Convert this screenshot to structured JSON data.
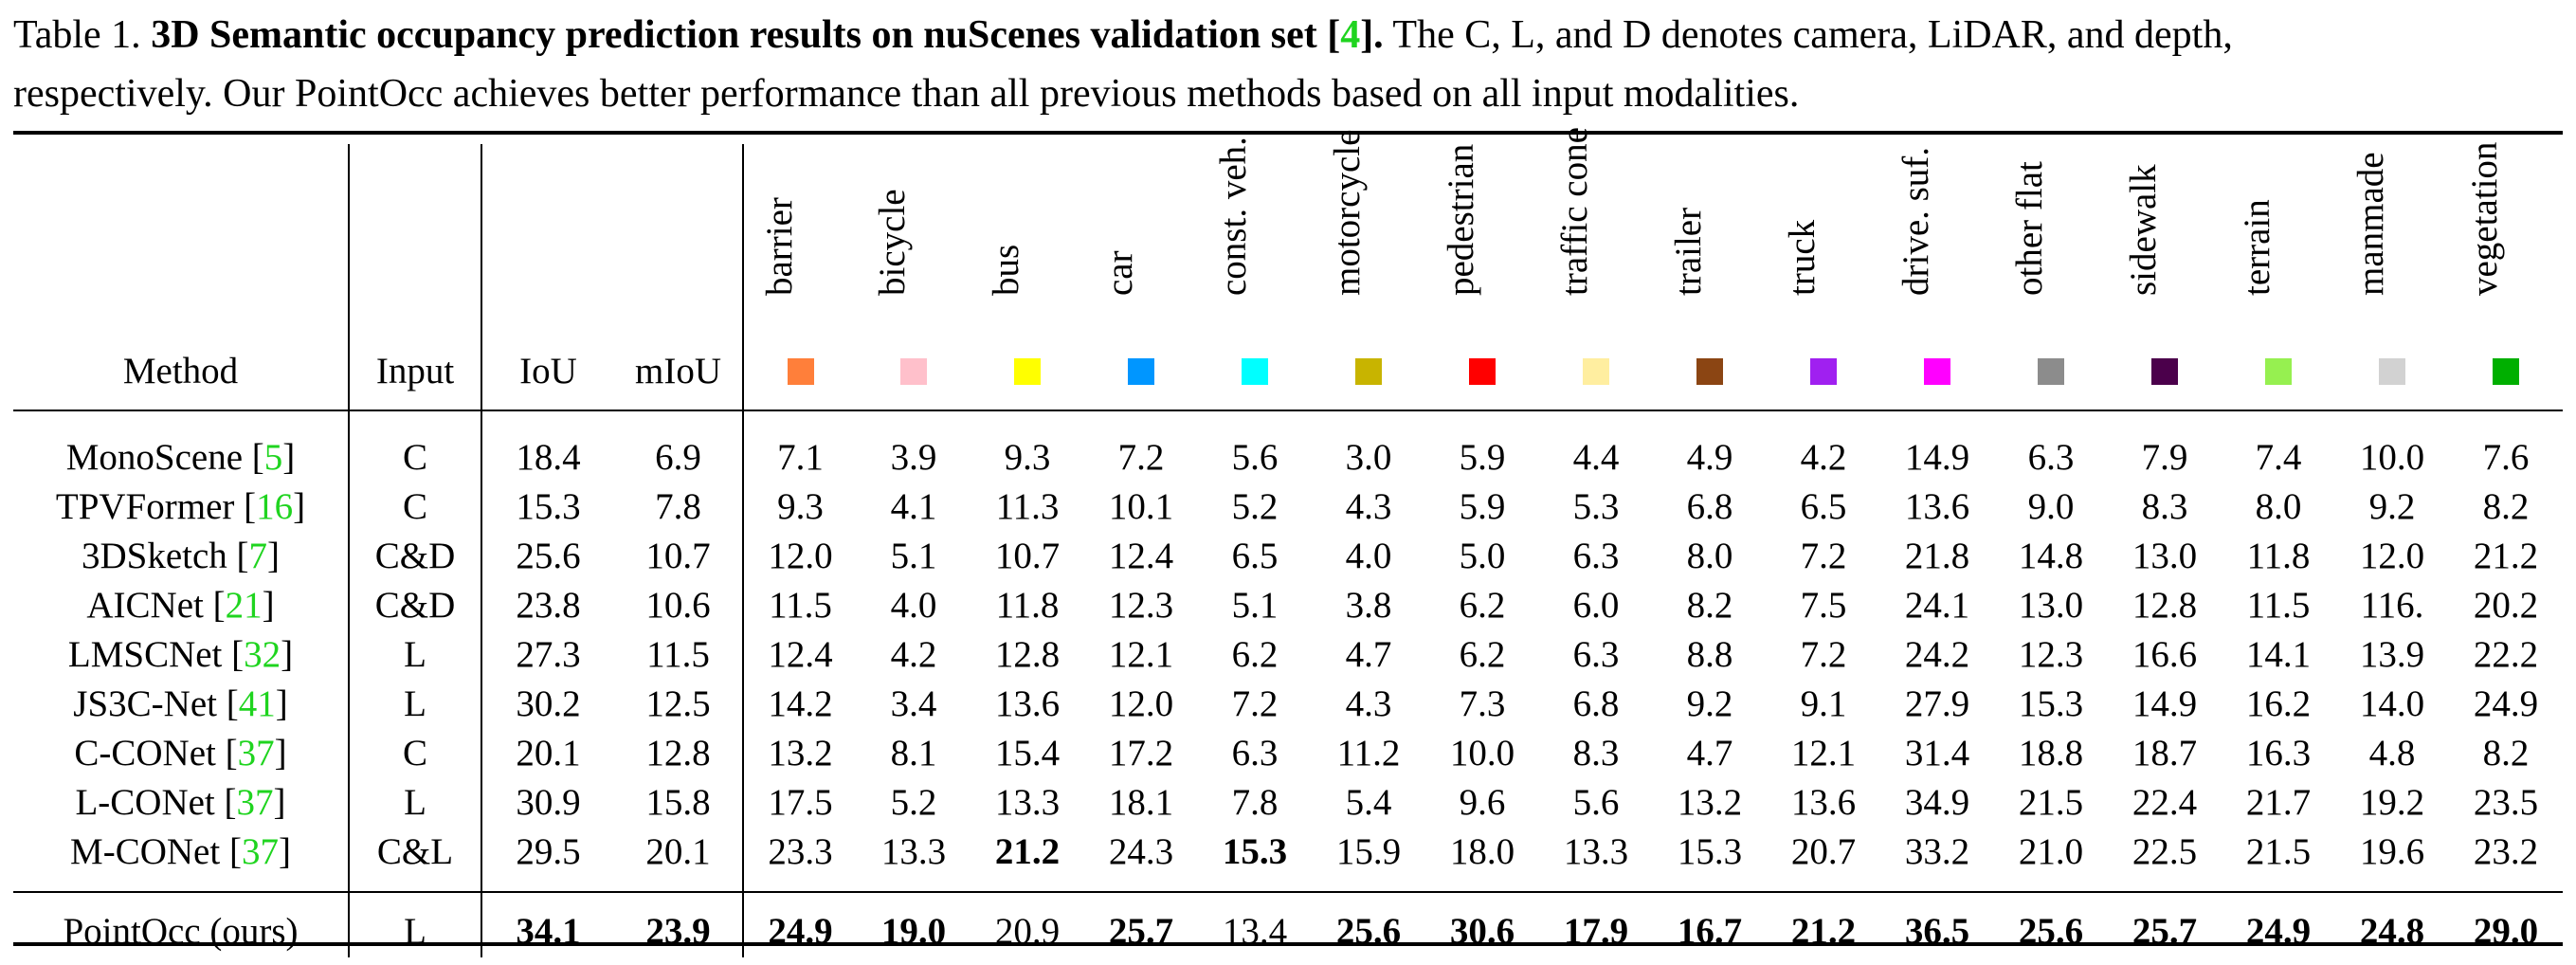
{
  "caption": {
    "label": "Table 1.",
    "title": "3D Semantic occupancy prediction results on nuScenes validation set [",
    "title_ref": "4",
    "title_end": "].",
    "body1": " The C, L, and D denotes camera, LiDAR, and depth,",
    "body2": "respectively. Our PointOcc achieves better performance than all previous methods based on all input modalities."
  },
  "table": {
    "header": {
      "method": "Method",
      "input": "Input",
      "iou": "IoU",
      "miou": "mIoU"
    },
    "classes": [
      {
        "name": "barrier",
        "color": "#ff7f3a"
      },
      {
        "name": "bicycle",
        "color": "#ffc0cb"
      },
      {
        "name": "bus",
        "color": "#ffff00"
      },
      {
        "name": "car",
        "color": "#0096ff"
      },
      {
        "name": "const. veh.",
        "color": "#00ffff"
      },
      {
        "name": "motorcycle",
        "color": "#c8b400"
      },
      {
        "name": "pedestrian",
        "color": "#ff0000"
      },
      {
        "name": "traffic cone",
        "color": "#ffeea0"
      },
      {
        "name": "trailer",
        "color": "#8b4513"
      },
      {
        "name": "truck",
        "color": "#a020f0"
      },
      {
        "name": "drive. suf.",
        "color": "#ff00ff"
      },
      {
        "name": "other flat",
        "color": "#8c8c8c"
      },
      {
        "name": "sidewalk",
        "color": "#4b004b"
      },
      {
        "name": "terrain",
        "color": "#96f050"
      },
      {
        "name": "manmade",
        "color": "#d2d2d2"
      },
      {
        "name": "vegetation",
        "color": "#00af00"
      }
    ],
    "rows": [
      {
        "method": "MonoScene [",
        "ref": "5",
        "input": "C",
        "iou": "18.4",
        "miou": "6.9",
        "values": [
          "7.1",
          "3.9",
          "9.3",
          "7.2",
          "5.6",
          "3.0",
          "5.9",
          "4.4",
          "4.9",
          "4.2",
          "14.9",
          "6.3",
          "7.9",
          "7.4",
          "10.0",
          "7.6"
        ]
      },
      {
        "method": "TPVFormer [",
        "ref": "16",
        "input": "C",
        "iou": "15.3",
        "miou": "7.8",
        "values": [
          "9.3",
          "4.1",
          "11.3",
          "10.1",
          "5.2",
          "4.3",
          "5.9",
          "5.3",
          "6.8",
          "6.5",
          "13.6",
          "9.0",
          "8.3",
          "8.0",
          "9.2",
          "8.2"
        ]
      },
      {
        "method": "3DSketch [",
        "ref": "7",
        "input": "C&D",
        "iou": "25.6",
        "miou": "10.7",
        "values": [
          "12.0",
          "5.1",
          "10.7",
          "12.4",
          "6.5",
          "4.0",
          "5.0",
          "6.3",
          "8.0",
          "7.2",
          "21.8",
          "14.8",
          "13.0",
          "11.8",
          "12.0",
          "21.2"
        ]
      },
      {
        "method": "AICNet [",
        "ref": "21",
        "input": "C&D",
        "iou": "23.8",
        "miou": "10.6",
        "values": [
          "11.5",
          "4.0",
          "11.8",
          "12.3",
          "5.1",
          "3.8",
          "6.2",
          "6.0",
          "8.2",
          "7.5",
          "24.1",
          "13.0",
          "12.8",
          "11.5",
          "116.",
          "20.2"
        ]
      },
      {
        "method": "LMSCNet [",
        "ref": "32",
        "input": "L",
        "iou": "27.3",
        "miou": "11.5",
        "values": [
          "12.4",
          "4.2",
          "12.8",
          "12.1",
          "6.2",
          "4.7",
          "6.2",
          "6.3",
          "8.8",
          "7.2",
          "24.2",
          "12.3",
          "16.6",
          "14.1",
          "13.9",
          "22.2"
        ]
      },
      {
        "method": "JS3C-Net [",
        "ref": "41",
        "input": "L",
        "iou": "30.2",
        "miou": "12.5",
        "values": [
          "14.2",
          "3.4",
          "13.6",
          "12.0",
          "7.2",
          "4.3",
          "7.3",
          "6.8",
          "9.2",
          "9.1",
          "27.9",
          "15.3",
          "14.9",
          "16.2",
          "14.0",
          "24.9"
        ]
      },
      {
        "method": "C-CONet [",
        "ref": "37",
        "input": "C",
        "iou": "20.1",
        "miou": "12.8",
        "values": [
          "13.2",
          "8.1",
          "15.4",
          "17.2",
          "6.3",
          "11.2",
          "10.0",
          "8.3",
          "4.7",
          "12.1",
          "31.4",
          "18.8",
          "18.7",
          "16.3",
          "4.8",
          "8.2"
        ]
      },
      {
        "method": "L-CONet [",
        "ref": "37",
        "input": "L",
        "iou": "30.9",
        "miou": "15.8",
        "values": [
          "17.5",
          "5.2",
          "13.3",
          "18.1",
          "7.8",
          "5.4",
          "9.6",
          "5.6",
          "13.2",
          "13.6",
          "34.9",
          "21.5",
          "22.4",
          "21.7",
          "19.2",
          "23.5"
        ]
      },
      {
        "method": "M-CONet [",
        "ref": "37",
        "input": "C&L",
        "iou": "29.5",
        "miou": "20.1",
        "values": [
          "23.3",
          "13.3",
          "21.2",
          "24.3",
          "15.3",
          "15.9",
          "18.0",
          "13.3",
          "15.3",
          "20.7",
          "33.2",
          "21.0",
          "22.5",
          "21.5",
          "19.6",
          "23.2"
        ],
        "bold_idx": [
          2,
          4
        ]
      }
    ],
    "ours": {
      "method": "PointOcc (ours)",
      "input": "L",
      "iou": "34.1",
      "miou": "23.9",
      "values": [
        "24.9",
        "19.0",
        "20.9",
        "25.7",
        "13.4",
        "25.6",
        "30.6",
        "17.9",
        "16.7",
        "21.2",
        "36.5",
        "25.6",
        "25.7",
        "24.9",
        "24.8",
        "29.0"
      ],
      "bold_idx": [
        0,
        1,
        3,
        5,
        6,
        7,
        8,
        9,
        10,
        11,
        12,
        13,
        14,
        15
      ]
    }
  }
}
